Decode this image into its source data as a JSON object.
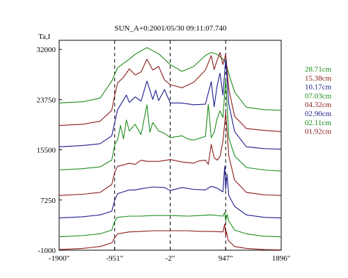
{
  "chart_data": {
    "type": "line",
    "title": "SUN_A+0:2001/05/30 09:11:07.740",
    "ylabel": "Ta,I",
    "xlabel": "",
    "xlim": [
      -1900,
      1896
    ],
    "ylim": [
      -1000,
      33500
    ],
    "x_ticks": [
      {
        "value": -1900,
        "label": "-1900\""
      },
      {
        "value": -951,
        "label": "-951\""
      },
      {
        "value": -2,
        "label": "-2\""
      },
      {
        "value": 947,
        "label": "947\""
      },
      {
        "value": 1896,
        "label": "1896\""
      }
    ],
    "y_ticks": [
      {
        "value": 32000,
        "label": "32000"
      },
      {
        "value": 23750,
        "label": "23750"
      },
      {
        "value": 15500,
        "label": "15500"
      },
      {
        "value": 7250,
        "label": "7250"
      },
      {
        "value": -1000,
        "label": "-1000"
      }
    ],
    "vlines": [
      -951,
      -2,
      947
    ],
    "series": [
      {
        "name": "28.71cm",
        "color": "#1a8a1a",
        "x": [
          -1900,
          -1500,
          -1200,
          -1000,
          -900,
          -700,
          -600,
          -400,
          -200,
          0,
          200,
          400,
          600,
          700,
          800,
          900,
          950,
          1000,
          1100,
          1300,
          1600,
          1896
        ],
        "y": [
          23200,
          23400,
          24000,
          26800,
          29000,
          30400,
          31200,
          32300,
          31300,
          29500,
          28400,
          29200,
          31000,
          31500,
          31200,
          30400,
          29800,
          28000,
          25000,
          22500,
          22100,
          22000
        ]
      },
      {
        "name": "15.38cm",
        "color": "#8b1a1a",
        "x": [
          -1900,
          -1500,
          -1200,
          -1000,
          -951,
          -900,
          -800,
          -700,
          -600,
          -500,
          -400,
          -300,
          -200,
          -100,
          0,
          200,
          400,
          600,
          700,
          750,
          800,
          850,
          900,
          947,
          1000,
          1100,
          1300,
          1600,
          1896
        ],
        "y": [
          19500,
          19700,
          20200,
          22000,
          24500,
          26500,
          27400,
          28800,
          27800,
          28300,
          30400,
          28600,
          29200,
          27000,
          26200,
          25700,
          26600,
          28600,
          31000,
          28700,
          30200,
          31500,
          29500,
          31200,
          25500,
          21000,
          19000,
          18700,
          18500
        ]
      },
      {
        "name": "10.17cm",
        "color": "#1a1a8b",
        "x": [
          -1900,
          -1500,
          -1200,
          -1000,
          -951,
          -900,
          -800,
          -750,
          -700,
          -600,
          -500,
          -400,
          -300,
          -250,
          -200,
          -100,
          0,
          200,
          400,
          600,
          700,
          750,
          800,
          850,
          900,
          947,
          1000,
          1100,
          1300,
          1600,
          1896
        ],
        "y": [
          16000,
          16200,
          16500,
          17800,
          20000,
          22100,
          23700,
          24500,
          23300,
          24200,
          23500,
          26800,
          23800,
          25300,
          23600,
          25400,
          23200,
          23200,
          22900,
          23000,
          26700,
          22600,
          26000,
          28100,
          24500,
          30500,
          23000,
          18500,
          16000,
          15700,
          15600
        ]
      },
      {
        "name": "07.03cm",
        "color": "#1a8a1a",
        "x": [
          -1900,
          -1500,
          -1200,
          -1000,
          -951,
          -900,
          -850,
          -800,
          -750,
          -700,
          -600,
          -500,
          -400,
          -350,
          -300,
          -200,
          -100,
          0,
          200,
          300,
          400,
          600,
          650,
          700,
          750,
          800,
          850,
          900,
          947,
          1000,
          1100,
          1300,
          1600,
          1896
        ],
        "y": [
          12200,
          12400,
          12700,
          13800,
          16300,
          17200,
          19500,
          17300,
          20400,
          18600,
          19700,
          18000,
          22900,
          18400,
          20000,
          18600,
          18200,
          17500,
          17800,
          17300,
          17100,
          17700,
          23000,
          17500,
          18400,
          20600,
          21900,
          20800,
          27200,
          17500,
          14500,
          12600,
          12200,
          12000
        ]
      },
      {
        "name": "04.32cm",
        "color": "#8b1a1a",
        "x": [
          -1900,
          -1500,
          -1200,
          -1000,
          -951,
          -900,
          -800,
          -700,
          -600,
          -500,
          -400,
          -200,
          0,
          200,
          400,
          500,
          600,
          650,
          700,
          750,
          800,
          850,
          900,
          947,
          1000,
          1100,
          1300,
          1600,
          1896
        ],
        "y": [
          8000,
          8200,
          8500,
          9800,
          11800,
          12800,
          13000,
          13300,
          13100,
          13800,
          13600,
          13600,
          13900,
          13500,
          13300,
          13700,
          13800,
          13100,
          16400,
          14200,
          13800,
          14400,
          16900,
          21600,
          14500,
          10500,
          8500,
          8100,
          8000
        ]
      },
      {
        "name": "02.90cm",
        "color": "#1a1a8b",
        "x": [
          -1900,
          -1500,
          -1200,
          -1000,
          -951,
          -900,
          -800,
          -700,
          -600,
          -500,
          -300,
          -100,
          0,
          200,
          400,
          600,
          700,
          800,
          900,
          930,
          947,
          970,
          1000,
          1100,
          1300,
          1600,
          1896
        ],
        "y": [
          4300,
          4500,
          4800,
          5400,
          7200,
          8300,
          8600,
          8900,
          8900,
          9100,
          9400,
          9300,
          8800,
          9300,
          9000,
          8900,
          9500,
          9200,
          8600,
          12800,
          9000,
          11500,
          8000,
          6200,
          4800,
          4400,
          4300
        ]
      },
      {
        "name": "02.11cm",
        "color": "#1a8a1a",
        "x": [
          -1900,
          -1500,
          -1200,
          -1000,
          -951,
          -900,
          -700,
          -500,
          -300,
          0,
          300,
          500,
          700,
          900,
          930,
          947,
          970,
          1000,
          1100,
          1300,
          1600,
          1896
        ],
        "y": [
          1200,
          1400,
          1700,
          2300,
          3800,
          4400,
          4600,
          4600,
          4700,
          4700,
          4600,
          4700,
          4800,
          4600,
          5200,
          3800,
          4900,
          3800,
          2300,
          1700,
          1300,
          1200
        ]
      },
      {
        "name": "01.92cm",
        "color": "#8b1a1a",
        "x": [
          -1900,
          -1500,
          -1200,
          -1000,
          -951,
          -900,
          -700,
          -500,
          -300,
          0,
          300,
          500,
          700,
          900,
          930,
          947,
          960,
          990,
          1100,
          1300,
          1600,
          1896
        ],
        "y": [
          -900,
          -700,
          -400,
          200,
          1000,
          1700,
          2000,
          2100,
          2200,
          2200,
          2200,
          2100,
          2100,
          2000,
          3300,
          1400,
          2100,
          600,
          -400,
          -700,
          -900,
          -950
        ]
      }
    ],
    "grid": false,
    "legend_position": "right"
  }
}
